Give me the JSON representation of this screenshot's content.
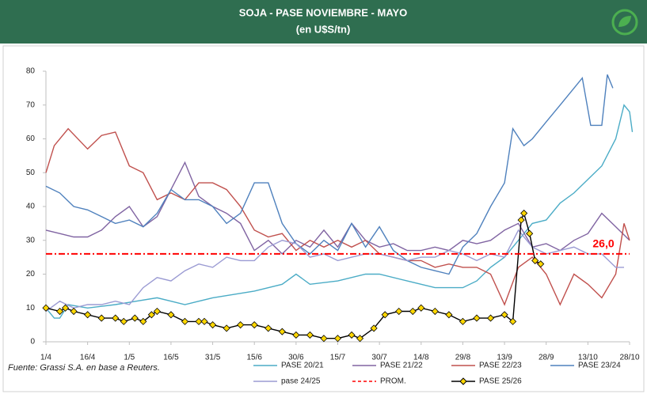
{
  "chart_data": {
    "type": "line",
    "title": "SOJA - PASE NOVIEMBRE  - MAYO",
    "subtitle": "(en U$S/tn)",
    "source": "Fuente: Grassi S.A. en base a Reuters.",
    "xlim": [
      0,
      210
    ],
    "xticks": [
      {
        "value": 0,
        "label": "1/4"
      },
      {
        "value": 15,
        "label": "16/4"
      },
      {
        "value": 30,
        "label": "1/5"
      },
      {
        "value": 45,
        "label": "16/5"
      },
      {
        "value": 60,
        "label": "31/5"
      },
      {
        "value": 75,
        "label": "15/6"
      },
      {
        "value": 90,
        "label": "30/6"
      },
      {
        "value": 105,
        "label": "15/7"
      },
      {
        "value": 120,
        "label": "30/7"
      },
      {
        "value": 135,
        "label": "14/8"
      },
      {
        "value": 150,
        "label": "29/8"
      },
      {
        "value": 165,
        "label": "13/9"
      },
      {
        "value": 180,
        "label": "28/9"
      },
      {
        "value": 195,
        "label": "13/10"
      },
      {
        "value": 210,
        "label": "28/10"
      }
    ],
    "ylim": [
      0,
      80
    ],
    "yticks": [
      0,
      10,
      20,
      30,
      40,
      50,
      60,
      70,
      80
    ],
    "average": {
      "name": "PROM.",
      "value": 26,
      "label": "26,0",
      "color": "#ff0000"
    },
    "series": [
      {
        "name": "PASE 20/21",
        "color": "#4bacc6",
        "x": [
          0,
          3,
          5,
          8,
          15,
          25,
          40,
          50,
          60,
          75,
          85,
          90,
          95,
          105,
          115,
          120,
          130,
          140,
          150,
          155,
          160,
          165,
          170,
          175,
          180,
          185,
          190,
          195,
          200,
          205,
          208,
          210,
          211
        ],
        "values": [
          10,
          7,
          7,
          11,
          10,
          11,
          13,
          11,
          13,
          15,
          17,
          20,
          17,
          18,
          20,
          20,
          18,
          16,
          16,
          18,
          22,
          25,
          30,
          35,
          36,
          41,
          44,
          48,
          52,
          60,
          70,
          68,
          62
        ]
      },
      {
        "name": "PASE 21/22",
        "color": "#8064a2",
        "x": [
          0,
          5,
          10,
          15,
          20,
          25,
          30,
          35,
          40,
          45,
          50,
          55,
          60,
          65,
          70,
          75,
          80,
          85,
          90,
          95,
          100,
          105,
          110,
          115,
          120,
          125,
          130,
          135,
          140,
          145,
          150,
          155,
          160,
          165,
          170,
          175,
          180,
          185,
          190,
          195,
          200,
          205,
          210
        ],
        "values": [
          33,
          32,
          31,
          31,
          33,
          37,
          40,
          34,
          37,
          45,
          53,
          43,
          40,
          38,
          35,
          27,
          30,
          26,
          30,
          28,
          33,
          28,
          35,
          30,
          28,
          29,
          27,
          27,
          28,
          27,
          30,
          29,
          30,
          33,
          35,
          28,
          29,
          27,
          30,
          32,
          38,
          34,
          30
        ]
      },
      {
        "name": "PASE 22/23",
        "color": "#c0504d",
        "x": [
          0,
          3,
          8,
          15,
          20,
          25,
          30,
          35,
          40,
          45,
          50,
          55,
          60,
          65,
          70,
          75,
          80,
          85,
          90,
          95,
          100,
          105,
          110,
          115,
          120,
          125,
          130,
          135,
          140,
          145,
          150,
          155,
          160,
          165,
          170,
          175,
          180,
          185,
          190,
          195,
          200,
          205,
          208,
          210
        ],
        "values": [
          50,
          58,
          63,
          57,
          61,
          62,
          52,
          50,
          42,
          44,
          42,
          47,
          47,
          45,
          40,
          33,
          31,
          32,
          27,
          30,
          28,
          30,
          28,
          30,
          26,
          25,
          24,
          24,
          22,
          23,
          22,
          22,
          20,
          11,
          22,
          25,
          20,
          11,
          20,
          17,
          13,
          20,
          35,
          30
        ]
      },
      {
        "name": "PASE 23/24",
        "color": "#4f81bd",
        "x": [
          0,
          5,
          10,
          15,
          20,
          25,
          30,
          35,
          40,
          45,
          50,
          55,
          60,
          65,
          70,
          75,
          80,
          85,
          90,
          95,
          100,
          105,
          110,
          115,
          120,
          125,
          130,
          135,
          140,
          145,
          150,
          155,
          160,
          165,
          168,
          172,
          175,
          180,
          185,
          190,
          193,
          196,
          200,
          202,
          204
        ],
        "values": [
          46,
          44,
          40,
          39,
          37,
          35,
          36,
          34,
          38,
          45,
          42,
          42,
          40,
          35,
          38,
          47,
          47,
          35,
          29,
          26,
          30,
          27,
          35,
          28,
          34,
          27,
          24,
          22,
          21,
          20,
          28,
          32,
          40,
          47,
          63,
          58,
          60,
          65,
          70,
          75,
          78,
          64,
          64,
          79,
          75
        ]
      },
      {
        "name": "pase 24/25",
        "color": "#9b9bd3",
        "x": [
          0,
          5,
          10,
          15,
          20,
          25,
          30,
          35,
          40,
          45,
          50,
          55,
          60,
          65,
          70,
          75,
          80,
          85,
          90,
          95,
          100,
          105,
          110,
          115,
          120,
          125,
          130,
          135,
          140,
          145,
          150,
          155,
          160,
          165,
          170,
          175,
          180,
          185,
          190,
          195,
          200,
          205,
          208
        ],
        "values": [
          9,
          12,
          10,
          11,
          11,
          12,
          11,
          16,
          19,
          18,
          21,
          23,
          22,
          25,
          24,
          24,
          28,
          30,
          29,
          25,
          26,
          24,
          25,
          26,
          26,
          25,
          24,
          25,
          25,
          27,
          26,
          24,
          26,
          25,
          33,
          28,
          26,
          27,
          28,
          26,
          26,
          22,
          22
        ]
      },
      {
        "name": "PASE 25/26",
        "color": "#000000",
        "marker_color": "#ffd700",
        "x": [
          0,
          5,
          7,
          10,
          15,
          20,
          25,
          28,
          32,
          35,
          38,
          40,
          45,
          50,
          55,
          57,
          60,
          65,
          70,
          75,
          80,
          85,
          90,
          95,
          100,
          105,
          110,
          113,
          118,
          122,
          127,
          132,
          135,
          140,
          145,
          150,
          155,
          160,
          165,
          168,
          171,
          172,
          174,
          176,
          178
        ],
        "values": [
          10,
          9,
          10,
          9,
          8,
          7,
          7,
          6,
          7,
          6,
          8,
          9,
          8,
          6,
          6,
          6,
          5,
          4,
          5,
          5,
          4,
          3,
          2,
          2,
          1,
          1,
          2,
          1,
          4,
          8,
          9,
          9,
          10,
          9,
          8,
          6,
          7,
          7,
          8,
          6,
          36,
          38,
          32,
          24,
          23
        ]
      }
    ]
  }
}
